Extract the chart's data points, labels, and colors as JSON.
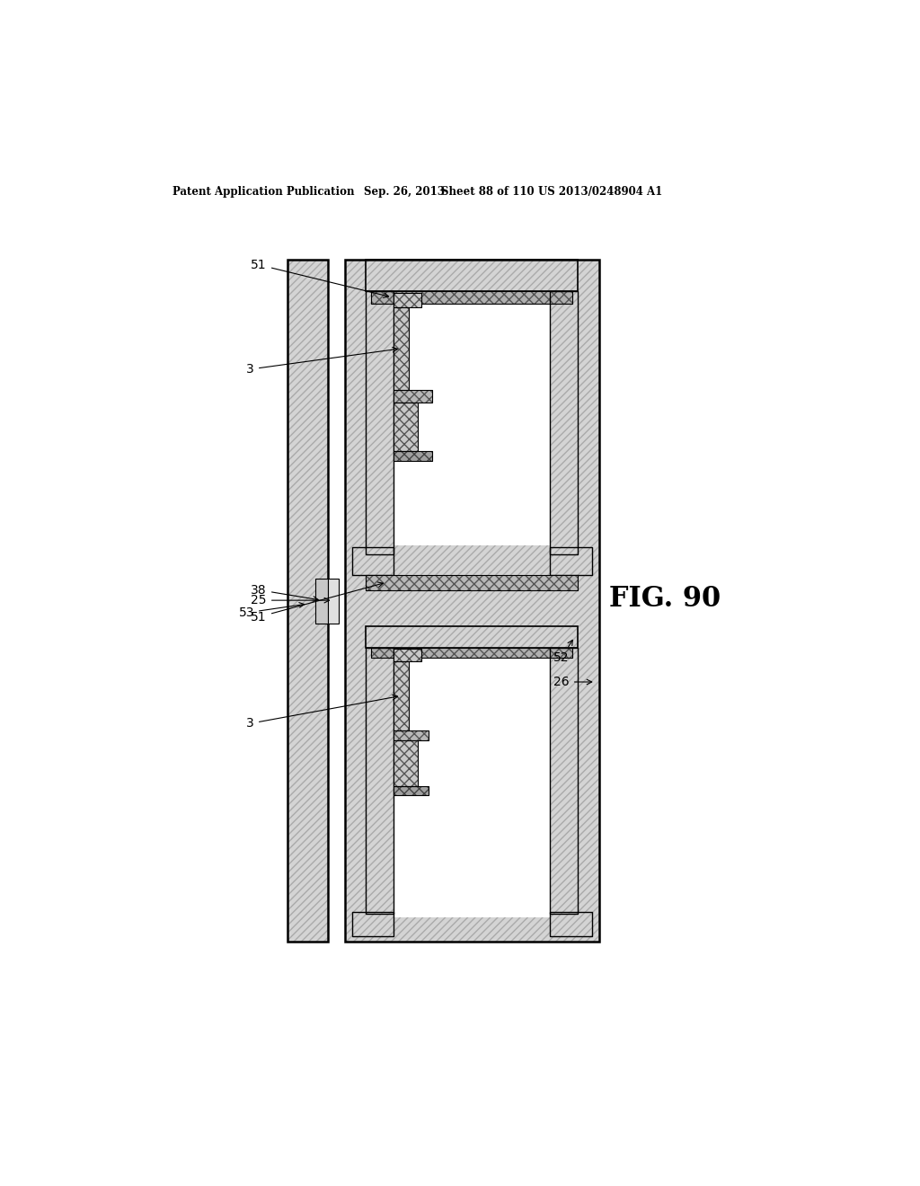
{
  "bg_color": "#ffffff",
  "header_text": "Patent Application Publication",
  "header_date": "Sep. 26, 2013",
  "header_sheet": "Sheet 88 of 110",
  "header_patent": "US 2013/0248904 A1",
  "fig_label": "FIG. 90",
  "hatch_color": "#aaaaaa",
  "hatch_fc": "#d8d8d8",
  "line_color": "#000000"
}
